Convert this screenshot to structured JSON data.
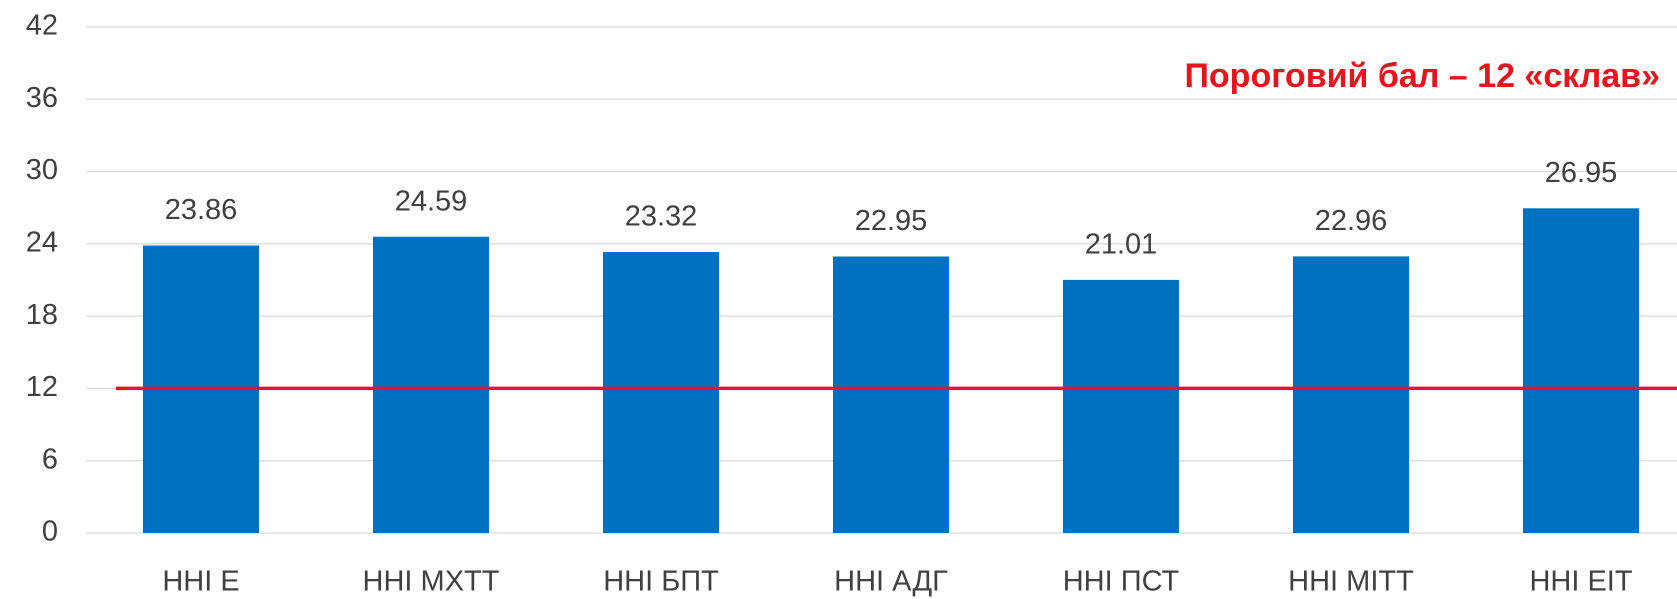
{
  "chart_data": {
    "type": "bar",
    "categories": [
      "ННІ Е",
      "ННІ МХТТ",
      "ННІ БПТ",
      "ННІ АДГ",
      "ННІ ПСТ",
      "ННІ МІТТ",
      "ННІ ЕІТ"
    ],
    "values": [
      23.86,
      24.59,
      23.32,
      22.95,
      21.01,
      22.96,
      26.95
    ],
    "color": "#0070c0",
    "ylim": [
      0,
      42
    ],
    "yticks": [
      0,
      6,
      12,
      18,
      24,
      30,
      36,
      42
    ],
    "grid": true,
    "threshold": {
      "value": 12,
      "color": "#e8141c"
    },
    "annotation": "Пороговий бал – 12 «склав»"
  }
}
